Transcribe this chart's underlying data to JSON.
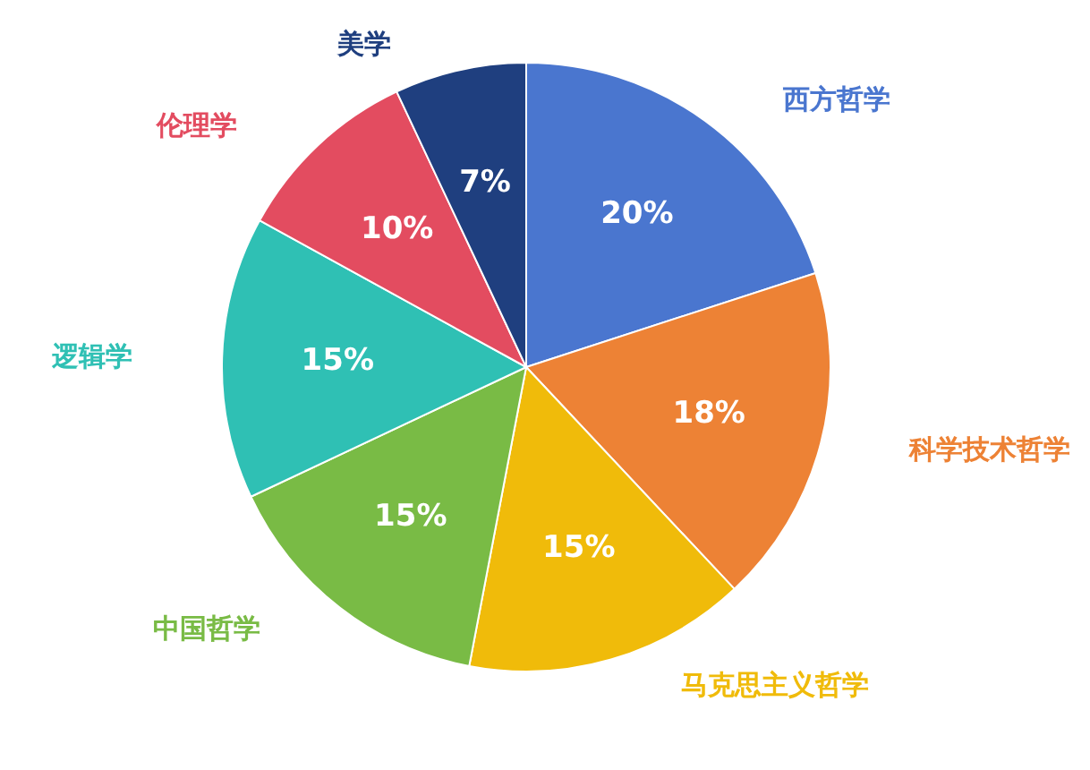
{
  "chart_data": {
    "type": "pie",
    "categories": [
      "西方哲学",
      "科学技术哲学",
      "马克思主义哲学",
      "中国哲学",
      "逻辑学",
      "伦理学",
      "美学"
    ],
    "values": [
      20,
      18,
      15,
      15,
      15,
      10,
      7
    ],
    "value_labels": [
      "20%",
      "18%",
      "15%",
      "15%",
      "15%",
      "10%",
      "7%"
    ],
    "colors": [
      "#4a76cf",
      "#ed8235",
      "#f0bb0a",
      "#79bb45",
      "#2fc0b4",
      "#e34c60",
      "#1f3f7f"
    ],
    "legend": false
  }
}
